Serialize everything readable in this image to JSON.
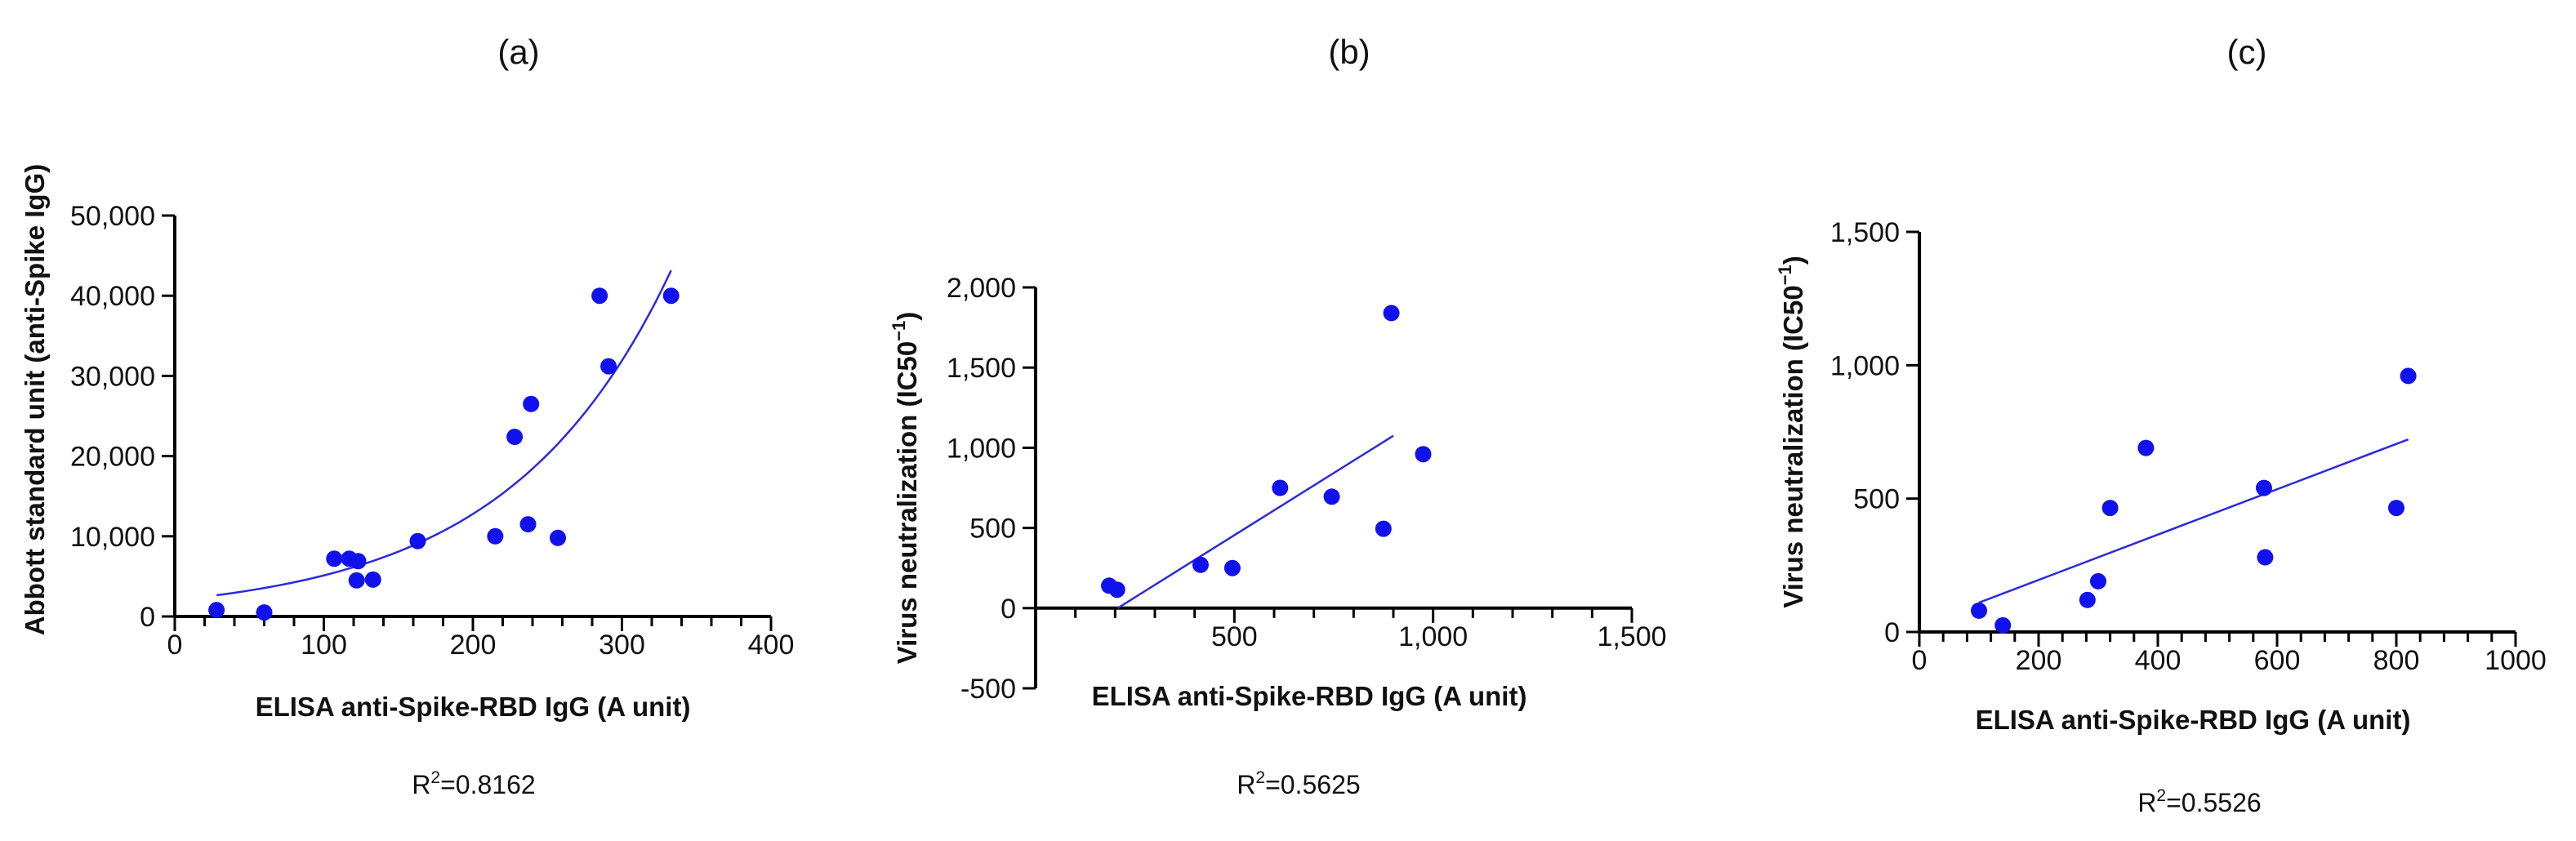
{
  "chart_data": [
    {
      "type": "scatter",
      "panel_label": "(a)",
      "xlabel": "ELISA anti-Spike-RBD IgG (A unit)",
      "ylabel": "Abbott standard unit (anti-Spike IgG)",
      "xlim": [
        0,
        400
      ],
      "ylim": [
        0,
        50000
      ],
      "xticks": [
        0,
        100,
        200,
        300,
        400
      ],
      "xtick_labels": [
        "0",
        "100",
        "200",
        "300",
        "400"
      ],
      "yticks": [
        0,
        10000,
        20000,
        30000,
        40000,
        50000
      ],
      "ytick_labels": [
        "0",
        "10,000",
        "20,000",
        "30,000",
        "40,000",
        "50,000"
      ],
      "annotation": {
        "prefix": "R",
        "sup": "2",
        "suffix": "=0.8162"
      },
      "fit": {
        "kind": "exponential",
        "a": 2050,
        "b": 0.00915,
        "x_range": [
          28,
          333
        ]
      },
      "points": [
        {
          "x": 28,
          "y": 800
        },
        {
          "x": 60,
          "y": 500
        },
        {
          "x": 107,
          "y": 7200
        },
        {
          "x": 117,
          "y": 7200
        },
        {
          "x": 122,
          "y": 4500
        },
        {
          "x": 123,
          "y": 6900
        },
        {
          "x": 133,
          "y": 4600
        },
        {
          "x": 163,
          "y": 9400
        },
        {
          "x": 215,
          "y": 10000
        },
        {
          "x": 228,
          "y": 22400
        },
        {
          "x": 237,
          "y": 11500
        },
        {
          "x": 239,
          "y": 26500
        },
        {
          "x": 257,
          "y": 9800
        },
        {
          "x": 285,
          "y": 40000
        },
        {
          "x": 291,
          "y": 31200
        },
        {
          "x": 333,
          "y": 40000
        }
      ]
    },
    {
      "type": "scatter",
      "panel_label": "(b)",
      "xlabel": "ELISA anti-Spike-RBD IgG (A unit)",
      "ylabel": "Virus neutralization (IC50",
      "ylabel_sup": "−1",
      "ylabel_suffix": ")",
      "xlim": [
        0,
        1500
      ],
      "ylim": [
        -500,
        2000
      ],
      "xticks": [
        500,
        1000,
        1500
      ],
      "xtick_labels": [
        "500",
        "1,000",
        "1,500"
      ],
      "yticks": [
        -500,
        0,
        500,
        1000,
        1500,
        2000
      ],
      "ytick_labels": [
        "-500",
        "0",
        "500",
        "1,000",
        "1,500",
        "2,000"
      ],
      "annotation": {
        "prefix": "R",
        "sup": "2",
        "suffix": "=0.5625"
      },
      "fit": {
        "kind": "linear",
        "slope": 1.55,
        "intercept": -320,
        "x_range": [
          207,
          900
        ]
      },
      "points": [
        {
          "x": 185,
          "y": 140
        },
        {
          "x": 205,
          "y": 115
        },
        {
          "x": 415,
          "y": 270
        },
        {
          "x": 495,
          "y": 250
        },
        {
          "x": 615,
          "y": 750
        },
        {
          "x": 745,
          "y": 695
        },
        {
          "x": 875,
          "y": 495
        },
        {
          "x": 895,
          "y": 1840
        },
        {
          "x": 975,
          "y": 960
        }
      ]
    },
    {
      "type": "scatter",
      "panel_label": "(c)",
      "xlabel": "ELISA anti-Spike-RBD IgG (A unit)",
      "ylabel": "Virus neutralization (IC50",
      "ylabel_sup": "−1",
      "ylabel_suffix": ")",
      "xlim": [
        0,
        1000
      ],
      "ylim": [
        0,
        1500
      ],
      "xticks": [
        0,
        200,
        400,
        600,
        800,
        1000
      ],
      "xtick_labels": [
        "0",
        "200",
        "400",
        "600",
        "800",
        "1000"
      ],
      "yticks": [
        0,
        500,
        1000,
        1500
      ],
      "ytick_labels": [
        "0",
        "500",
        "1,000",
        "1,500"
      ],
      "annotation": {
        "prefix": "R",
        "sup": "2",
        "suffix": "=0.5526"
      },
      "fit": {
        "kind": "linear",
        "slope": 0.85,
        "intercept": 25,
        "x_range": [
          100,
          820
        ]
      },
      "points": [
        {
          "x": 100,
          "y": 80
        },
        {
          "x": 140,
          "y": 25
        },
        {
          "x": 282,
          "y": 120
        },
        {
          "x": 300,
          "y": 190
        },
        {
          "x": 320,
          "y": 465
        },
        {
          "x": 380,
          "y": 690
        },
        {
          "x": 578,
          "y": 540
        },
        {
          "x": 580,
          "y": 280
        },
        {
          "x": 800,
          "y": 465
        },
        {
          "x": 820,
          "y": 960
        }
      ]
    }
  ]
}
